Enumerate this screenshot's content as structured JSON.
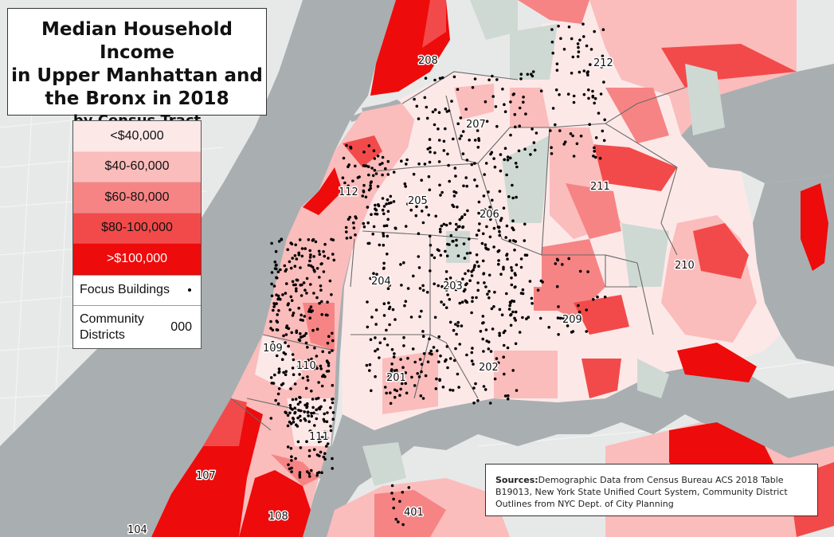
{
  "title": {
    "line1": "Median Household Income",
    "line2": "in Upper Manhattan and",
    "line3": "the Bronx in 2018",
    "subtitle": "by Census Tract"
  },
  "legend": {
    "bins": [
      {
        "label": "<$40,000",
        "color": "#fde8e8"
      },
      {
        "label": "$40-60,000",
        "color": "#fbbcbc"
      },
      {
        "label": "$60-80,000",
        "color": "#f68484"
      },
      {
        "label": "$80-100,000",
        "color": "#f24a4a"
      },
      {
        "label": ">$100,000",
        "color": "#ee0b0b"
      }
    ],
    "focus_label": "Focus Buildings",
    "cd_label": "Community Districts",
    "cd_sample": "000"
  },
  "districts": [
    {
      "label": "208"
    },
    {
      "label": "212"
    },
    {
      "label": "207"
    },
    {
      "label": "112"
    },
    {
      "label": "205"
    },
    {
      "label": "206"
    },
    {
      "label": "211"
    },
    {
      "label": "210"
    },
    {
      "label": "204"
    },
    {
      "label": "203"
    },
    {
      "label": "209"
    },
    {
      "label": "109"
    },
    {
      "label": "110"
    },
    {
      "label": "201"
    },
    {
      "label": "202"
    },
    {
      "label": "111"
    },
    {
      "label": "107"
    },
    {
      "label": "108"
    },
    {
      "label": "401"
    },
    {
      "label": "104"
    }
  ],
  "sources": {
    "heading": "Sources:",
    "text": "Demographic Data from Census Bureau ACS 2018 Table B19013, New York State Unified Court System, Community District Outlines from NYC Dept. of City Planning"
  },
  "colors": {
    "water": "#a9aeb1",
    "land": "#e7e9e8",
    "park": "#cfd9d3"
  }
}
